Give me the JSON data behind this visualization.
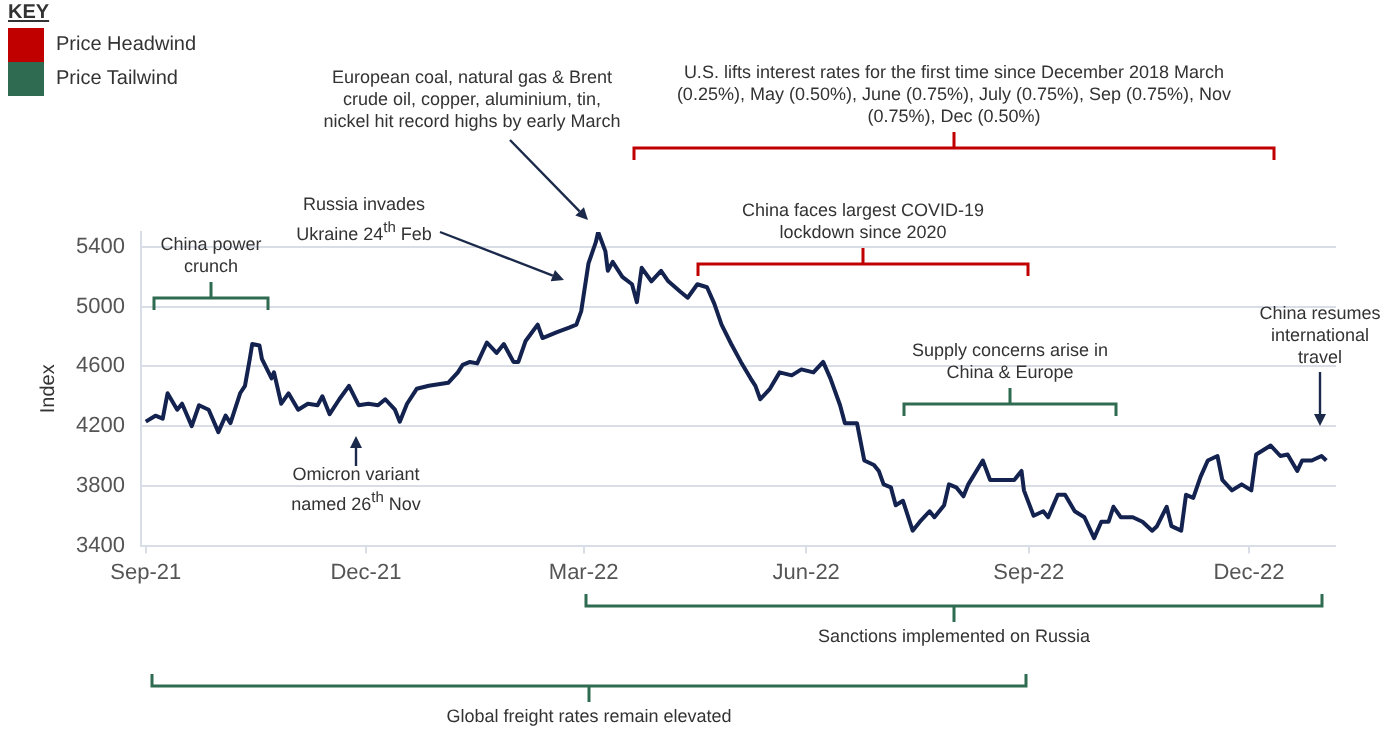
{
  "chart_data": {
    "type": "line",
    "ylabel": "Index",
    "grid": "y",
    "x": [
      "2021-09-01",
      "2021-09-05",
      "2021-09-08",
      "2021-09-10",
      "2021-09-14",
      "2021-09-16",
      "2021-09-20",
      "2021-09-23",
      "2021-09-27",
      "2021-10-01",
      "2021-10-04",
      "2021-10-06",
      "2021-10-10",
      "2021-10-12",
      "2021-10-14",
      "2021-10-15",
      "2021-10-18",
      "2021-10-19",
      "2021-10-23",
      "2021-10-24",
      "2021-10-27",
      "2021-10-30",
      "2021-11-03",
      "2021-11-07",
      "2021-11-11",
      "2021-11-13",
      "2021-11-16",
      "2021-11-20",
      "2021-11-24",
      "2021-11-28",
      "2021-12-02",
      "2021-12-06",
      "2021-12-09",
      "2021-12-13",
      "2021-12-15",
      "2021-12-18",
      "2021-12-22",
      "2021-12-27",
      "2022-01-04",
      "2022-01-08",
      "2022-01-10",
      "2022-01-13",
      "2022-01-16",
      "2022-01-20",
      "2022-01-24",
      "2022-01-27",
      "2022-01-31",
      "2022-02-02",
      "2022-02-05",
      "2022-02-10",
      "2022-02-12",
      "2022-02-18",
      "2022-02-23",
      "2022-02-26",
      "2022-02-28",
      "2022-03-03",
      "2022-03-06",
      "2022-03-07",
      "2022-03-10",
      "2022-03-11",
      "2022-03-13",
      "2022-03-17",
      "2022-03-21",
      "2022-03-23",
      "2022-03-25",
      "2022-03-29",
      "2022-04-02",
      "2022-04-05",
      "2022-04-10",
      "2022-04-13",
      "2022-04-17",
      "2022-04-21",
      "2022-04-24",
      "2022-04-27",
      "2022-05-01",
      "2022-05-05",
      "2022-05-09",
      "2022-05-11",
      "2022-05-13",
      "2022-05-17",
      "2022-05-21",
      "2022-05-26",
      "2022-05-30",
      "2022-06-04",
      "2022-06-08",
      "2022-06-11",
      "2022-06-15",
      "2022-06-17",
      "2022-06-22",
      "2022-06-25",
      "2022-06-29",
      "2022-07-01",
      "2022-07-03",
      "2022-07-06",
      "2022-07-08",
      "2022-07-11",
      "2022-07-15",
      "2022-07-18",
      "2022-07-22",
      "2022-07-24",
      "2022-07-28",
      "2022-07-30",
      "2022-08-02",
      "2022-08-05",
      "2022-08-07",
      "2022-08-13",
      "2022-08-16",
      "2022-08-22",
      "2022-08-26",
      "2022-08-29",
      "2022-08-30",
      "2022-09-03",
      "2022-09-07",
      "2022-09-09",
      "2022-09-13",
      "2022-09-16",
      "2022-09-20",
      "2022-09-24",
      "2022-09-28",
      "2022-10-01",
      "2022-10-04",
      "2022-10-06",
      "2022-10-09",
      "2022-10-14",
      "2022-10-18",
      "2022-10-22",
      "2022-10-24",
      "2022-10-28",
      "2022-10-30",
      "2022-11-03",
      "2022-11-05",
      "2022-11-08",
      "2022-11-11",
      "2022-11-14",
      "2022-11-18",
      "2022-11-20",
      "2022-11-24",
      "2022-11-28",
      "2022-12-02",
      "2022-12-04",
      "2022-12-10",
      "2022-12-14",
      "2022-12-17",
      "2022-12-21",
      "2022-12-23",
      "2022-12-27",
      "2022-12-31",
      "2023-01-02"
    ],
    "series": [
      {
        "color": "#13224f",
        "values": [
          4230,
          4270,
          4250,
          4420,
          4310,
          4350,
          4200,
          4340,
          4310,
          4160,
          4270,
          4220,
          4420,
          4470,
          4650,
          4750,
          4740,
          4650,
          4520,
          4560,
          4350,
          4420,
          4310,
          4350,
          4340,
          4400,
          4280,
          4380,
          4470,
          4340,
          4350,
          4340,
          4380,
          4310,
          4230,
          4350,
          4450,
          4470,
          4490,
          4560,
          4610,
          4630,
          4620,
          4760,
          4690,
          4750,
          4630,
          4630,
          4770,
          4880,
          4790,
          4830,
          4860,
          4880,
          4970,
          5290,
          5430,
          5500,
          5370,
          5240,
          5300,
          5200,
          5150,
          5030,
          5260,
          5170,
          5240,
          5170,
          5100,
          5060,
          5150,
          5130,
          5020,
          4880,
          4750,
          4630,
          4520,
          4470,
          4380,
          4450,
          4560,
          4540,
          4580,
          4560,
          4630,
          4520,
          4340,
          4220,
          4220,
          3970,
          3940,
          3900,
          3810,
          3790,
          3670,
          3700,
          3500,
          3560,
          3630,
          3590,
          3670,
          3810,
          3790,
          3730,
          3810,
          3970,
          3840,
          3840,
          3840,
          3900,
          3770,
          3600,
          3630,
          3590,
          3740,
          3740,
          3630,
          3590,
          3450,
          3560,
          3560,
          3660,
          3590,
          3590,
          3560,
          3500,
          3530,
          3660,
          3530,
          3500,
          3740,
          3720,
          3860,
          3970,
          4000,
          3840,
          3770,
          3810,
          3770,
          4010,
          4070,
          4000,
          4010,
          3900,
          3970,
          3970,
          4000,
          3970
        ]
      }
    ],
    "xlim": [
      "2021-08-30",
      "2023-01-06"
    ],
    "xticks": [
      {
        "value": "2021-09-01",
        "label": "Sep-21"
      },
      {
        "value": "2021-12-01",
        "label": "Dec-21"
      },
      {
        "value": "2022-03-01",
        "label": "Mar-22"
      },
      {
        "value": "2022-06-01",
        "label": "Jun-22"
      },
      {
        "value": "2022-09-01",
        "label": "Sep-22"
      },
      {
        "value": "2022-12-01",
        "label": "Dec-22"
      }
    ],
    "ylim": [
      3400,
      5500
    ],
    "yticks": [
      3400,
      3800,
      4200,
      4600,
      5000,
      5400
    ],
    "annotations": [
      "KEY",
      "Price Headwind",
      "Price Tailwind",
      "U.S. lifts interest rates for the first time since December 2018 March (0.25%), May (0.50%), June (0.75%), July (0.75%), Sep (0.75%), Nov (0.75%), Dec (0.50%)",
      "China faces largest COVID-19 lockdown since 2020",
      "China power crunch",
      "Supply concerns arise in China & Europe",
      "Sanctions implemented on Russia",
      "Global freight rates remain elevated",
      "European coal, natural gas & Brent crude oil, copper, aluminium, tin, nickel hit record highs by early March",
      "Russia invades Ukraine 24$^{th}$ Feb",
      "Omicron variant named 26$^{th}$ Nov",
      "China resumes international travel"
    ]
  }
}
